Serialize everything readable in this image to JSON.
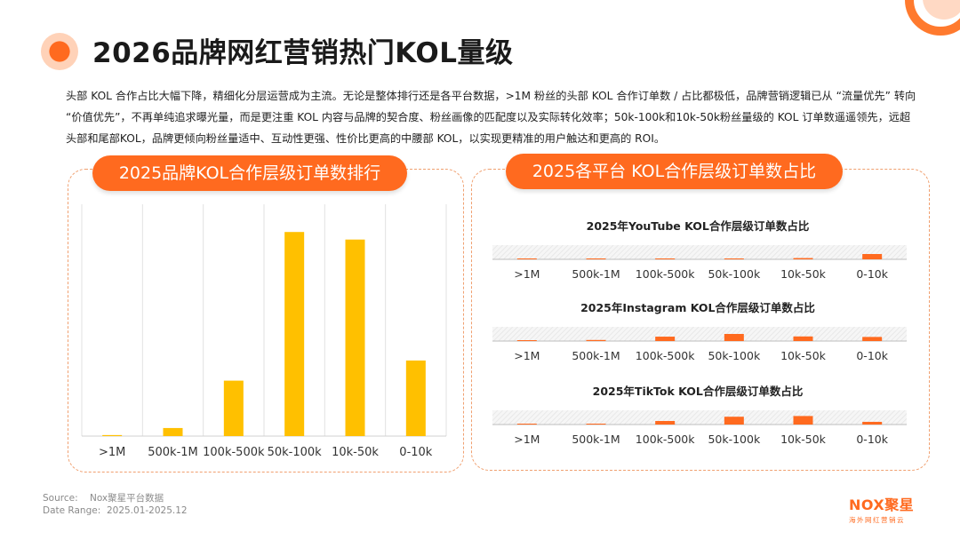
{
  "title": "2026品牌网红营销热门KOL量级",
  "intro": "头部 KOL 合作占比大幅下降，精细化分层运营成为主流。无论是整体排行还是各平台数据，>1M 粉丝的头部 KOL 合作订单数 / 占比都极低，品牌营销逻辑已从 “流量优先” 转向 “价值优先”，不再单纯追求曝光量，而是更注重 KOL 内容与品牌的契合度、粉丝画像的匹配度以及实际转化效率；50k-100k和10k-50k粉丝量级的 KOL 订单数遥遥领先，远超头部和尾部KOL，品牌更倾向粉丝量适中、互动性更强、性价比更高的中腰部 KOL，以实现更精准的用户触达和更高的 ROI。",
  "left_panel_title": "2025品牌KOL合作层级订单数排行",
  "right_panel_title": "2025各平台 KOL合作层级订单数占比",
  "footer": {
    "source_label": "Source:",
    "source_value": "Nox聚星平台数据",
    "date_label": "Date Range:",
    "date_value": "2025.01-2025.12"
  },
  "logo": {
    "name": "NOX聚星",
    "sub": "海外网红营销云"
  },
  "colors": {
    "accent": "#ff6a1f",
    "bar_main": "#ffc000",
    "bar_mini": "#ff6a1f",
    "panel_border": "#f0a070"
  },
  "chart_data": [
    {
      "type": "bar",
      "title": "2025品牌KOL合作层级订单数排行",
      "categories": [
        ">1M",
        "500k-1M",
        "100k-500k",
        "50k-100k",
        "10k-50k",
        "0-10k"
      ],
      "values": [
        0.4,
        3.2,
        22,
        81,
        78,
        30
      ],
      "ylim": [
        0,
        92
      ],
      "grid": "vertical"
    },
    {
      "type": "bar",
      "title": "2025年YouTube KOL合作层级订单数占比",
      "categories": [
        ">1M",
        "500k-1M",
        "100k-500k",
        "50k-100k",
        "10k-50k",
        "0-10k"
      ],
      "values": [
        0.3,
        0.6,
        1.2,
        1.0,
        1.8,
        7.5
      ],
      "ylim": [
        0,
        20
      ]
    },
    {
      "type": "bar",
      "title": "2025年Instagram KOL合作层级订单数占比",
      "categories": [
        ">1M",
        "500k-1M",
        "100k-500k",
        "50k-100k",
        "10k-50k",
        "0-10k"
      ],
      "values": [
        0.2,
        1.5,
        6.2,
        10,
        6.5,
        5.8
      ],
      "ylim": [
        0,
        20
      ]
    },
    {
      "type": "bar",
      "title": "2025年TikTok KOL合作层级订单数占比",
      "categories": [
        ">1M",
        "500k-1M",
        "100k-500k",
        "50k-100k",
        "10k-50k",
        "0-10k"
      ],
      "values": [
        0.2,
        0.8,
        5.0,
        11,
        12,
        3.8
      ],
      "ylim": [
        0,
        20
      ]
    }
  ]
}
